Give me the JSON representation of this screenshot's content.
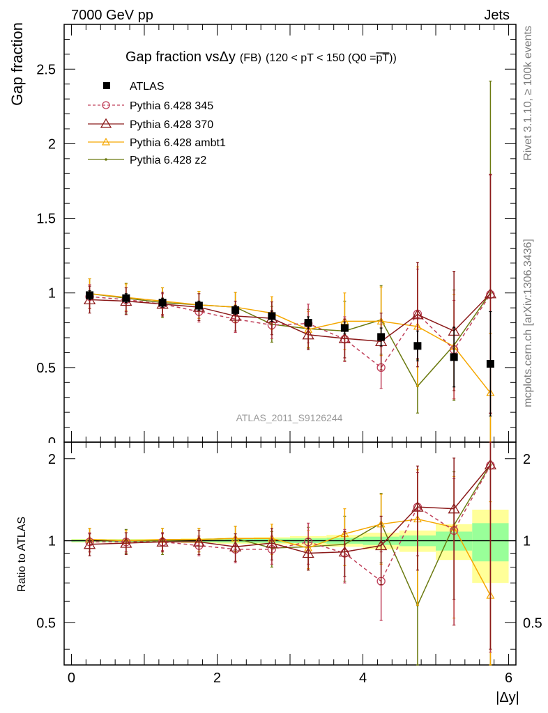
{
  "header": {
    "left": "7000 GeV pp",
    "right": "Jets"
  },
  "side_labels": {
    "top": "Rivet 3.1.10, ≥ 100k events",
    "bottom": "mcplots.cern.ch [arXiv:1306.3436]"
  },
  "watermark": "ATLAS_2011_S9126244",
  "colors": {
    "atlas": "#000000",
    "p345": "#c0405a",
    "p370": "#8b1a1a",
    "ambt1": "#f5a700",
    "z2": "#6b7a10",
    "band_inner": "#99ff99",
    "band_outer": "#ffff99"
  },
  "chart_data": [
    {
      "type": "line",
      "title_main": "Gap fraction vs",
      "title_delta": "Δy",
      "title_fb": "(FB)",
      "title_range": "(120 < pT < 150 (Q0 =",
      "title_q0": "pT",
      "title_close": "))",
      "ylabel": "Gap fraction",
      "ylim": [
        0,
        2.8
      ],
      "xlim": [
        -0.1,
        6.1
      ],
      "yticks": [
        "0.5",
        "1",
        "1.5",
        "2",
        "2.5"
      ],
      "x": [
        0.25,
        0.75,
        1.25,
        1.75,
        2.25,
        2.75,
        3.25,
        3.75,
        4.25,
        4.75,
        5.25,
        5.75
      ],
      "series": [
        {
          "key": "atlas",
          "name": "ATLAS",
          "values": [
            0.985,
            0.965,
            0.935,
            0.915,
            0.885,
            0.845,
            0.8,
            0.765,
            0.705,
            0.645,
            0.57,
            0.525
          ],
          "err": [
            0.03,
            0.03,
            0.03,
            0.03,
            0.03,
            0.035,
            0.04,
            0.04,
            0.06,
            0.1,
            0.2,
            0.35
          ]
        },
        {
          "key": "p345",
          "name": "Pythia 6.428 345",
          "values": [
            0.975,
            0.955,
            0.925,
            0.875,
            0.825,
            0.785,
            0.795,
            0.69,
            0.5,
            0.86,
            0.62,
            0.99
          ],
          "err": [
            0.08,
            0.08,
            0.07,
            0.07,
            0.09,
            0.09,
            0.13,
            0.15,
            0.14,
            0.3,
            0.33,
            0.8
          ]
        },
        {
          "key": "p370",
          "name": "Pythia 6.428 370",
          "values": [
            0.955,
            0.945,
            0.925,
            0.905,
            0.845,
            0.83,
            0.72,
            0.695,
            0.675,
            0.855,
            0.745,
            0.995
          ],
          "err": [
            0.09,
            0.09,
            0.08,
            0.09,
            0.1,
            0.11,
            0.1,
            0.13,
            0.19,
            0.35,
            0.4,
            0.8
          ]
        },
        {
          "key": "ambt1",
          "name": "Pythia 6.428 ambt1",
          "values": [
            0.995,
            0.97,
            0.945,
            0.92,
            0.905,
            0.865,
            0.755,
            0.81,
            0.81,
            0.775,
            0.64,
            0.33
          ],
          "err": [
            0.1,
            0.09,
            0.09,
            0.09,
            0.1,
            0.11,
            0.12,
            0.19,
            0.23,
            0.4,
            0.35,
            0.4
          ]
        },
        {
          "key": "z2",
          "name": "Pythia 6.428 z2",
          "values": [
            0.995,
            0.965,
            0.935,
            0.92,
            0.905,
            0.79,
            0.76,
            0.745,
            0.82,
            0.375,
            0.65,
            1.0
          ],
          "err": [
            0.1,
            0.1,
            0.1,
            0.09,
            0.1,
            0.12,
            0.13,
            0.2,
            0.23,
            0.18,
            0.37,
            1.42
          ]
        }
      ]
    },
    {
      "type": "line",
      "ylabel": "Ratio to ATLAS",
      "xlabel": "|Δy|",
      "ylim": [
        0.35,
        2.3
      ],
      "yscale": "log",
      "xticks": [
        "0",
        "2",
        "4",
        "6"
      ],
      "yticks": [
        "0.5",
        "1",
        "2"
      ],
      "x": [
        0.25,
        0.75,
        1.25,
        1.75,
        2.25,
        2.75,
        3.25,
        3.75,
        4.25,
        4.75,
        5.25,
        5.75
      ],
      "band_bins": [
        [
          0.0,
          0.5
        ],
        [
          0.5,
          1.0
        ],
        [
          1.0,
          1.5
        ],
        [
          1.5,
          2.0
        ],
        [
          2.0,
          2.5
        ],
        [
          2.5,
          3.0
        ],
        [
          3.0,
          3.5
        ],
        [
          3.5,
          4.0
        ],
        [
          4.0,
          4.5
        ],
        [
          4.5,
          5.0
        ],
        [
          5.0,
          5.5
        ],
        [
          5.5,
          6.0
        ]
      ],
      "band_inner": [
        0.01,
        0.01,
        0.01,
        0.012,
        0.015,
        0.018,
        0.02,
        0.025,
        0.035,
        0.045,
        0.08,
        0.16
      ],
      "band_outer": [
        0.015,
        0.015,
        0.015,
        0.02,
        0.025,
        0.03,
        0.04,
        0.05,
        0.07,
        0.09,
        0.15,
        0.3
      ],
      "series": [
        {
          "key": "p345",
          "name": "Pythia 6.428 345",
          "values": [
            0.99,
            0.99,
            0.99,
            0.96,
            0.93,
            0.93,
            0.99,
            0.9,
            0.71,
            1.33,
            1.09,
            1.89
          ],
          "err": [
            0.08,
            0.08,
            0.07,
            0.08,
            0.1,
            0.11,
            0.17,
            0.2,
            0.2,
            0.45,
            0.6,
            1.5
          ]
        },
        {
          "key": "p370",
          "name": "Pythia 6.428 370",
          "values": [
            0.97,
            0.98,
            0.99,
            0.99,
            0.95,
            0.98,
            0.9,
            0.91,
            0.96,
            1.33,
            1.31,
            1.9
          ],
          "err": [
            0.09,
            0.09,
            0.08,
            0.1,
            0.11,
            0.13,
            0.12,
            0.17,
            0.27,
            0.55,
            0.7,
            1.5
          ]
        },
        {
          "key": "ambt1",
          "name": "Pythia 6.428 ambt1",
          "values": [
            1.01,
            1.0,
            1.01,
            1.01,
            1.02,
            1.02,
            0.94,
            1.06,
            1.15,
            1.2,
            1.12,
            0.63
          ],
          "err": [
            0.1,
            0.09,
            0.1,
            0.1,
            0.11,
            0.13,
            0.15,
            0.25,
            0.33,
            0.62,
            0.6,
            0.76
          ]
        },
        {
          "key": "z2",
          "name": "Pythia 6.428 z2",
          "values": [
            1.01,
            1.0,
            1.0,
            1.01,
            1.02,
            0.94,
            0.95,
            0.97,
            1.16,
            0.58,
            1.14,
            1.9
          ],
          "err": [
            0.1,
            0.1,
            0.11,
            0.1,
            0.11,
            0.14,
            0.17,
            0.26,
            0.33,
            0.3,
            0.65,
            2.7
          ]
        }
      ]
    }
  ]
}
